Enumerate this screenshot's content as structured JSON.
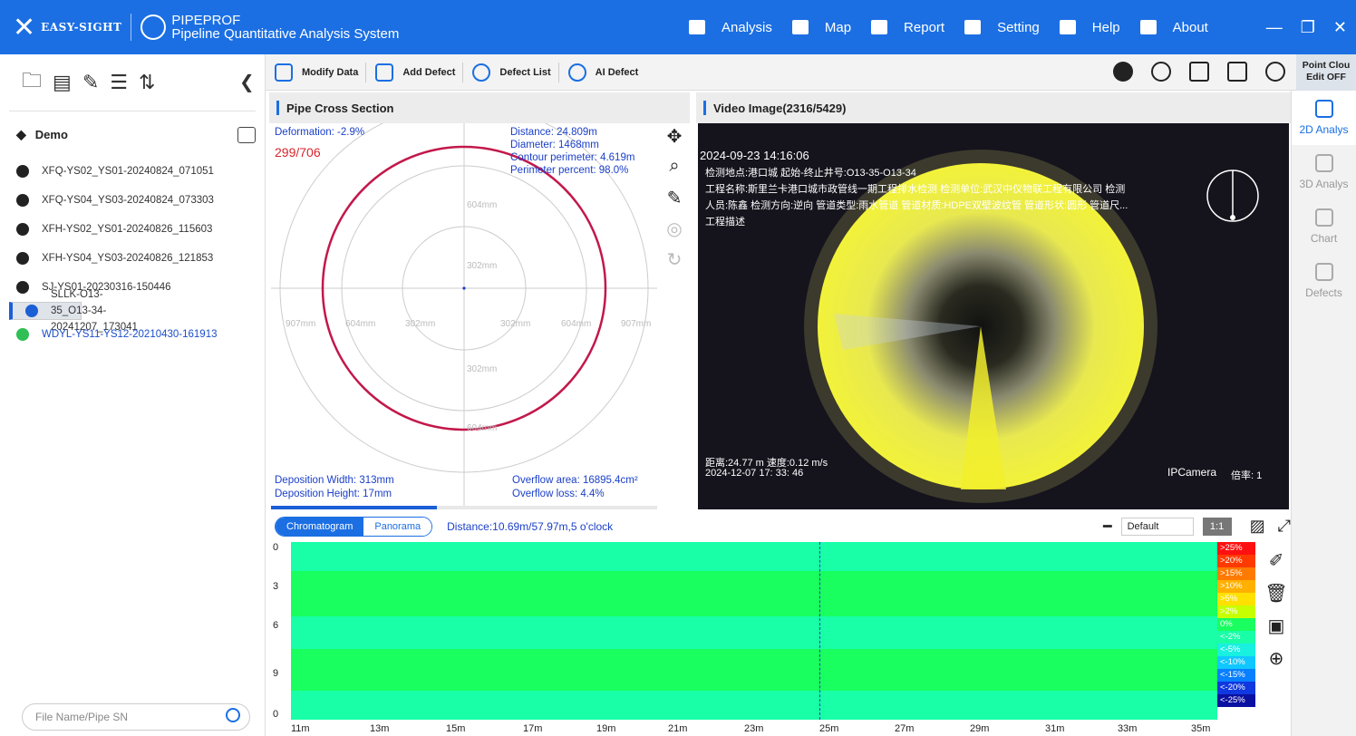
{
  "app": {
    "brand": "EASY-SIGHT",
    "product": "PIPEPROF",
    "subtitle": "Pipeline Quantitative Analysis System"
  },
  "nav": [
    {
      "label": "Analysis"
    },
    {
      "label": "Map"
    },
    {
      "label": "Report"
    },
    {
      "label": "Setting"
    },
    {
      "label": "Help"
    },
    {
      "label": "About"
    }
  ],
  "sidebar": {
    "project": "Demo",
    "files": [
      {
        "label": "XFQ-YS02_YS01-20240824_071051",
        "state": "normal"
      },
      {
        "label": "XFQ-YS04_YS03-20240824_073303",
        "state": "normal"
      },
      {
        "label": "XFH-YS02_YS01-20240826_115603",
        "state": "normal"
      },
      {
        "label": "XFH-YS04_YS03-20240826_121853",
        "state": "normal"
      },
      {
        "label": "SJ-YS01-20230316-150446",
        "state": "normal"
      },
      {
        "label": "SLLK-O13-35_O13-34-20241207_173041",
        "state": "selected"
      },
      {
        "label": "WDYL-YS11-YS12-20210430-161913",
        "state": "done"
      }
    ],
    "search_placeholder": "File Name/Pipe SN"
  },
  "toolbar": {
    "modify": "Modify Data",
    "add": "Add Defect",
    "list": "Defect List",
    "ai": "AI Defect",
    "pointcloud": "Point Clou\nEdit OFF"
  },
  "right": {
    "items": [
      "2D Analys",
      "3D Analys",
      "Chart",
      "Defects"
    ]
  },
  "cross": {
    "title": "Pipe Cross Section",
    "deformation": "Deformation: -2.9%",
    "frame": "299/706",
    "distance": "Distance: 24.809m",
    "diameter": "Diameter: 1468mm",
    "contour": "Contour perimeter: 4.619m",
    "perimeter": "Perimeter percent:  98.0%",
    "dep_width": "Deposition Width: 313mm",
    "dep_height": "Deposition Height: 17mm",
    "overflow_area": "Overflow area: 16895.4cm²",
    "overflow_loss": "Overflow loss: 4.4%",
    "rings": [
      "907mm",
      "604mm",
      "302mm"
    ],
    "progress": 0.43
  },
  "video": {
    "title": "Video Image(2316/5429)",
    "time": "2024-09-23 14:16:06",
    "line1": "检测地点:港口城   起始-终止井号:O13-35-O13-34",
    "line2": "工程名称:斯里兰卡港口城市政管线一期工程排水检测 检测单位:武汉中仪物联工程有限公司 检测",
    "line3": "人员:陈鑫 检测方向:逆向 管道类型:雨水管道 管道材质:HDPE双壁波纹管 管道形状:圆形 管道尺...",
    "line4": "工程描述",
    "bottom1": "距离:24.77 m 速度:0.12 m/s",
    "bottom2": "2024-12-07 17:  33:  46",
    "camera": "IPCamera",
    "zoom": "倍率:  1"
  },
  "bottom": {
    "tabs": [
      "Chromatogram",
      "Panorama"
    ],
    "distance": "Distance:10.69m/57.97m,5 o'clock",
    "select": "Default",
    "ratio": "1:1",
    "y": [
      "0",
      "3",
      "6",
      "9",
      "0"
    ],
    "x": [
      "11m",
      "13m",
      "15m",
      "17m",
      "19m",
      "21m",
      "23m",
      "25m",
      "27m",
      "29m",
      "31m",
      "33m",
      "35m"
    ],
    "legend": [
      ">25%",
      ">20%",
      ">15%",
      ">10%",
      ">5%",
      ">2%",
      "0%",
      "<-2%",
      "<-5%",
      "<-10%",
      "<-15%",
      "<-20%",
      "<-25%"
    ]
  },
  "colors": {
    "primary": "#1b6fe3",
    "heat_green": "#19ff5f",
    "heat_cyan": "#18ffa8"
  }
}
